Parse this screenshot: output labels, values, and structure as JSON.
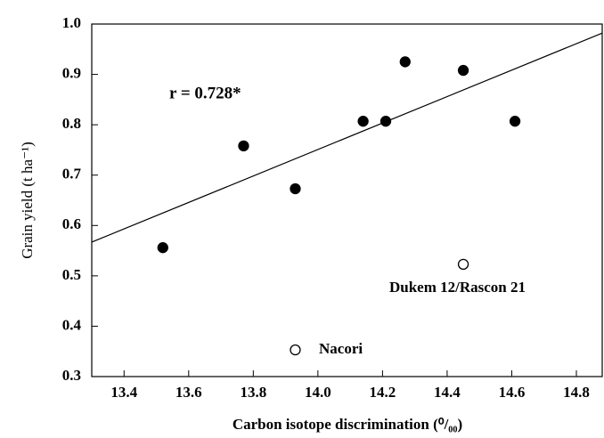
{
  "chart_data": {
    "type": "scatter",
    "x_label": "Carbon isotope discrimination (⁰/₀₀)",
    "y_label": "Grain yield (t ha⁻¹)",
    "xlim": [
      13.3,
      14.88
    ],
    "ylim": [
      0.3,
      1.0
    ],
    "xticks": [
      13.4,
      13.6,
      13.8,
      {
        "value": 14,
        "label": "14.0"
      },
      14.2,
      14.4,
      14.6,
      14.8
    ],
    "yticks": [
      0.3,
      0.4,
      0.5,
      0.6,
      0.7,
      0.8,
      0.9,
      {
        "value": 1,
        "label": "1.0"
      }
    ],
    "grid": false,
    "series": [
      {
        "color": "#000000",
        "marker": "filled",
        "x": [
          13.52,
          13.77,
          13.93,
          14.14,
          14.21,
          14.27,
          14.45,
          14.61
        ],
        "values": [
          0.556,
          0.758,
          0.673,
          0.807,
          0.807,
          0.925,
          0.908,
          0.807
        ]
      },
      {
        "color": "#000000",
        "marker": "open",
        "x": [
          14.45,
          13.93
        ],
        "values": [
          0.523,
          0.353
        ]
      }
    ],
    "fit_line": {
      "x": [
        13.3,
        14.88
      ],
      "values": [
        0.567,
        0.982
      ]
    },
    "annotations": [
      "r = 0.728*",
      "Dukem 12/Rascon 21",
      "Nacori"
    ]
  }
}
